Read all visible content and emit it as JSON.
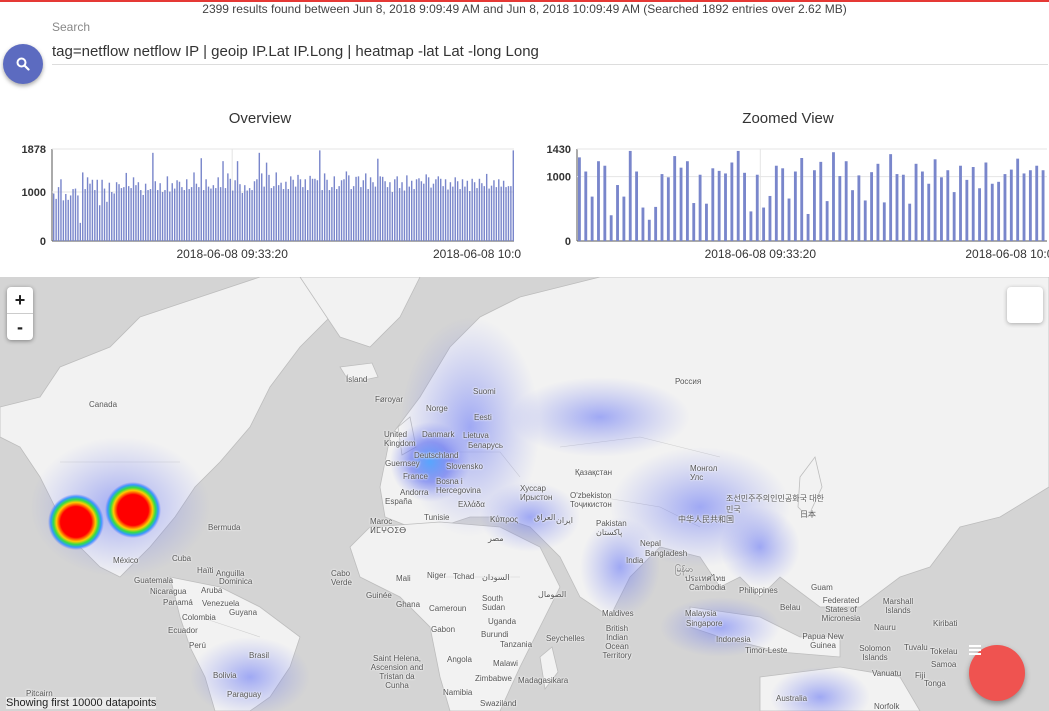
{
  "summary": "2399 results found between Jun 8, 2018 9:09:49 AM and Jun 8, 2018 10:09:49 AM (Searched 1892 entries over 2.62 MB)",
  "search": {
    "label": "Search",
    "query": "tag=netflow netflow IP | geoip IP.Lat IP.Long | heatmap -lat Lat -long Long",
    "button_icon": "search-icon"
  },
  "chart_data": [
    {
      "type": "bar",
      "title": "Overview",
      "y_ticks": [
        "1878",
        "1000",
        "0"
      ],
      "ylim": [
        0,
        1878
      ],
      "x_ticks": [
        "2018-06-08 09:33:20",
        "2018-06-08 10:0"
      ],
      "values": [
        970,
        860,
        1100,
        1260,
        830,
        960,
        840,
        930,
        1060,
        1070,
        930,
        370,
        1400,
        1060,
        1300,
        1170,
        1250,
        1040,
        1250,
        730,
        1250,
        1070,
        800,
        1190,
        1000,
        970,
        1200,
        1160,
        1080,
        1100,
        1390,
        1120,
        1080,
        1300,
        1140,
        1200,
        1040,
        940,
        1170,
        1040,
        1060,
        1800,
        1220,
        1040,
        1180,
        1000,
        1040,
        1320,
        1010,
        1180,
        1070,
        1240,
        1210,
        1100,
        1040,
        1260,
        1060,
        1100,
        1400,
        1170,
        1100,
        1690,
        1040,
        1260,
        1110,
        1070,
        1140,
        1080,
        1300,
        1100,
        1630,
        1080,
        1380,
        1270,
        1030,
        1240,
        1630,
        1160,
        980,
        1140,
        1030,
        1080,
        1040,
        1220,
        1260,
        1800,
        1380,
        1110,
        1600,
        1350,
        1080,
        1120,
        1400,
        1140,
        1190,
        1060,
        1210,
        1060,
        1320,
        1250,
        1110,
        1350,
        1260,
        1100,
        1260,
        1040,
        1330,
        1270,
        1270,
        1240,
        1850,
        1040,
        1380,
        1250,
        1040,
        1100,
        1320,
        1060,
        1120,
        1240,
        1260,
        1420,
        1340,
        1060,
        1120,
        1310,
        1320,
        1100,
        1240,
        1380,
        1060,
        1300,
        1200,
        1110,
        1680,
        1320,
        1310,
        1220,
        1100,
        1200,
        1000,
        1260,
        1320,
        1080,
        1200,
        1030,
        1340,
        1110,
        1230,
        1060,
        1260,
        1280,
        1220,
        1170,
        1360,
        1300,
        1090,
        1170,
        1260,
        1320,
        1270,
        1120,
        1260,
        1050,
        1200,
        1110,
        1300,
        1220,
        1060,
        1260,
        1110,
        1230,
        1020,
        1270,
        1200,
        1080,
        1270,
        1180,
        1120,
        1370,
        1070,
        1130,
        1240,
        1100,
        1260,
        1110,
        1230,
        1100,
        1120,
        1120,
        1850
      ]
    },
    {
      "type": "bar",
      "title": "Zoomed View",
      "y_ticks": [
        "1430",
        "1000",
        "0"
      ],
      "ylim": [
        0,
        1430
      ],
      "x_ticks": [
        "2018-06-08 09:33:20",
        "2018-06-08 10:0"
      ],
      "values": [
        1300,
        1080,
        690,
        1240,
        1170,
        400,
        870,
        690,
        1400,
        1080,
        520,
        330,
        530,
        1040,
        990,
        1320,
        1140,
        1240,
        590,
        1030,
        580,
        1130,
        1090,
        1050,
        1220,
        1400,
        1060,
        460,
        1030,
        520,
        700,
        1170,
        1130,
        660,
        1080,
        1290,
        420,
        1100,
        1230,
        620,
        1380,
        1010,
        1240,
        790,
        1020,
        630,
        1070,
        1200,
        600,
        1350,
        1040,
        1030,
        580,
        1200,
        1080,
        890,
        1270,
        990,
        1100,
        760,
        1170,
        950,
        1150,
        820,
        1220,
        890,
        920,
        1040,
        1110,
        1280,
        1050,
        1100,
        1170,
        1100
      ]
    }
  ],
  "map": {
    "zoom_in": "+",
    "zoom_out": "-",
    "footer_note": "Showing first 10000 datapoints",
    "labels": {
      "canada": "Canada",
      "island": "Ísland",
      "foroyar": "Føroyar",
      "norge": "Norge",
      "suomi": "Suomi",
      "eesti": "Eesti",
      "rossiya": "Россия",
      "united_kingdom": "United Kingdom",
      "danmark": "Danmark",
      "lietuva": "Lietuva",
      "belarus": "Беларусь",
      "deutschland": "Deutschland",
      "guernsey": "Guernsey",
      "slovensko": "Slovensko",
      "france": "France",
      "bosna": "Bosna i Hercegovina",
      "andorra": "Andorra",
      "espana": "España",
      "ellada": "Ελλάδα",
      "khussar": "Хуссар Ирыстон",
      "kazakhstan": "Қазақстан",
      "mongol": "Монгол Улс",
      "uzbekiston": "O'zbekiston Тоҷикистон",
      "korea": "조선민주주의인민공화국 대한민국",
      "nippon": "日本",
      "bermuda": "Bermuda",
      "maroc": "Maroc ⵍⵎⵖⵔⵉⴱ",
      "tunisie": "Tunisie",
      "kypros": "Κύπρος",
      "iraq": "العراق",
      "iran": "ایران",
      "pakistan": "Pakistan پاکستان",
      "nepal": "Nepal",
      "china": "中华人民共和国",
      "mexico": "México",
      "cuba": "Cuba",
      "haiti": "Haïti",
      "anguilla": "Anguilla",
      "dominica": "Dominica",
      "aruba": "Aruba",
      "guatemala": "Guatemala",
      "nicaragua": "Nicaragua",
      "panama": "Panamá",
      "venezuela": "Venezuela",
      "guyana": "Guyana",
      "colombia": "Colombia",
      "ecuador": "Ecuador",
      "peru": "Perú",
      "brasil": "Brasil",
      "bolivia": "Bolivia",
      "paraguay": "Paraguay",
      "cabo_verde": "Cabo Verde",
      "mali": "Mali",
      "niger": "Niger",
      "tchad": "Tchad",
      "sudan": "السودان",
      "misr": "مصر",
      "guinee": "Guinée",
      "ghana": "Ghana",
      "cameroun": "Cameroun",
      "gabon": "Gabon",
      "south_sudan": "South Sudan",
      "uganda": "Uganda",
      "somalia": "الصومال",
      "burundi": "Burundi",
      "tanzania": "Tanzania",
      "angola": "Angola",
      "malawi": "Malawi",
      "zimbabwe": "Zimbabwe",
      "madagascar": "Madagasikara",
      "namibia": "Namibia",
      "swaziland": "Swaziland",
      "saint_helena": "Saint Helena, Ascension and Tristan da Cunha",
      "seychelles": "Seychelles",
      "maldives": "Maldives",
      "british_indian": "British Indian Ocean Territory",
      "india": "India",
      "bangladesh": "Bangladesh",
      "myanmar": "မြန်မာ",
      "thailand": "ประเทศไทย",
      "cambodia": "Cambodia",
      "philippines": "Philippines",
      "malaysia": "Malaysia",
      "singapore": "Singapore",
      "indonesia": "Indonesia",
      "timor": "Timor-Leste",
      "guam": "Guam",
      "micronesia": "Federated States of Micronesia",
      "marshall": "Marshall Islands",
      "belau": "Belau",
      "nauru": "Nauru",
      "kiribati": "Kiribati",
      "papua": "Papua New Guinea",
      "solomon": "Solomon Islands",
      "tuvalu": "Tuvalu",
      "vanuatu": "Vanuatu",
      "fiji": "Fiji",
      "samoa": "Samoa",
      "tokelau": "Tokelau",
      "tonga": "Tonga",
      "australia": "Australia",
      "norfolk": "Norfolk",
      "pitcairn": "Pitcairn"
    }
  },
  "colors": {
    "accent": "#5c6bc0",
    "bar": "#7986cb",
    "fab": "#ef5350",
    "top_border": "#e53935"
  }
}
